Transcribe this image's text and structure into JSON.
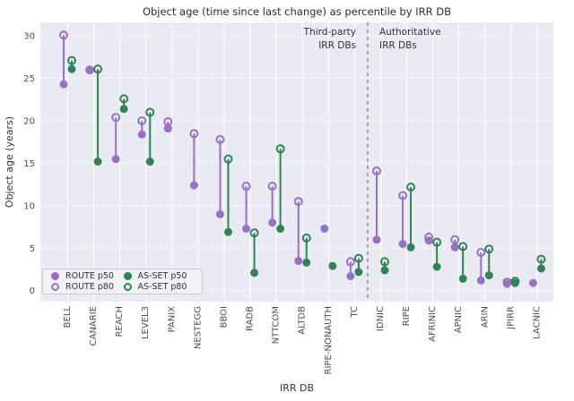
{
  "title": "Object age (time since last change) as percentile by IRR DB",
  "annotations": {
    "third_party_lines": [
      "Third-party",
      "IRR DBs"
    ],
    "authoritative_lines": [
      "Authoritative",
      "IRR DBs"
    ]
  },
  "colors": {
    "route": "#9a6fc9",
    "asset": "#2e8457",
    "background": "#eaeaf2",
    "grid": "#ffffff",
    "separator": "#777777",
    "tick_text": "#4d4d4d",
    "label_text": "#333333"
  },
  "legend": {
    "items": [
      {
        "label": "ROUTE p50",
        "group": "route",
        "style": "filled"
      },
      {
        "label": "ROUTE p80",
        "group": "route",
        "style": "open"
      },
      {
        "label": "AS-SET p50",
        "group": "asset",
        "style": "filled"
      },
      {
        "label": "AS-SET p80",
        "group": "asset",
        "style": "open"
      }
    ]
  },
  "chart_data": {
    "type": "scatter",
    "subtype": "lollipop-range",
    "title": "Object age (time since last change) as percentile by IRR DB",
    "xlabel": "IRR DB",
    "ylabel": "Object age (years)",
    "ylim": [
      -1.3,
      31.6
    ],
    "yticks": [
      0,
      5,
      10,
      15,
      20,
      25,
      30
    ],
    "grid": true,
    "legend_position": "lower left",
    "categories": [
      "BELL",
      "CANARIE",
      "REACH",
      "LEVEL3",
      "PANIX",
      "NESTEGG",
      "BBOI",
      "RADB",
      "NTTCOM",
      "ALTDB",
      "RIPE-NONAUTH",
      "TC",
      "IDNIC",
      "RIPE",
      "AFRINIC",
      "APNIC",
      "ARIN",
      "JPIRR",
      "LACNIC"
    ],
    "separator_between": [
      "TC",
      "IDNIC"
    ],
    "group_labels": {
      "left": "Third-party IRR DBs",
      "right": "Authoritative IRR DBs"
    },
    "series": [
      {
        "name": "ROUTE p50",
        "group": "route",
        "percentile": "p50",
        "values": [
          24.3,
          26.0,
          15.5,
          18.4,
          19.1,
          12.4,
          9.0,
          7.3,
          8.0,
          3.5,
          7.3,
          1.7,
          6.0,
          5.5,
          5.9,
          5.1,
          1.2,
          0.8,
          0.9
        ]
      },
      {
        "name": "ROUTE p80",
        "group": "route",
        "percentile": "p80",
        "values": [
          30.1,
          26.0,
          20.4,
          20.0,
          19.9,
          18.5,
          17.8,
          12.3,
          12.3,
          10.5,
          null,
          3.4,
          14.1,
          11.2,
          6.3,
          6.0,
          4.5,
          1.0,
          null
        ]
      },
      {
        "name": "AS-SET p50",
        "group": "asset",
        "percentile": "p50",
        "values": [
          26.1,
          15.2,
          21.4,
          15.2,
          null,
          null,
          6.9,
          2.1,
          7.3,
          3.3,
          2.9,
          2.2,
          2.4,
          5.1,
          2.8,
          1.4,
          1.8,
          0.9,
          2.6
        ]
      },
      {
        "name": "AS-SET p80",
        "group": "asset",
        "percentile": "p80",
        "values": [
          27.1,
          26.1,
          22.6,
          21.0,
          null,
          null,
          15.5,
          6.8,
          16.7,
          6.2,
          null,
          3.8,
          3.4,
          12.2,
          5.7,
          5.2,
          4.9,
          1.1,
          3.7
        ]
      }
    ]
  }
}
